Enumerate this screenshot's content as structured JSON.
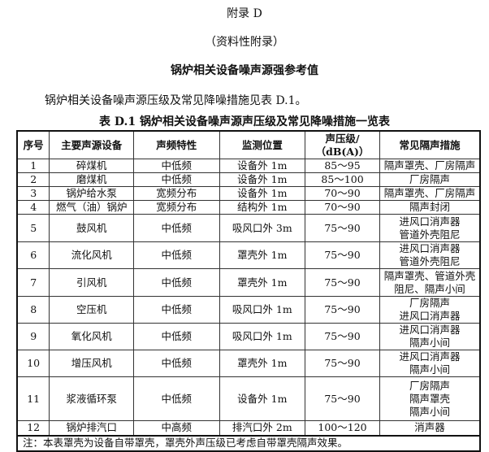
{
  "appendix": "附录 D",
  "nature": "（资料性附录）",
  "title": "锅炉相关设备噪声源强参考值",
  "paragraph": "锅炉相关设备噪声源压级及常见降噪措施见表 D.1。",
  "caption": "表 D.1    锅炉相关设备噪声源声压级及常见降噪措施一览表",
  "headers": [
    "序号",
    "主要声源设备",
    "声频特性",
    "监测位置",
    "声压级/\n（dB(A)）",
    "常见隔声措施"
  ],
  "rows": [
    [
      "1",
      "碎煤机",
      "中低频",
      "设备外 1m",
      "85～95",
      "隔声罩壳、厂房隔声"
    ],
    [
      "2",
      "磨煤机",
      "中低频",
      "设备外 1m",
      "85～100",
      "厂房隔声"
    ],
    [
      "3",
      "锅炉给水泵",
      "宽频分布",
      "设备外 1m",
      "70～90",
      "隔声罩壳、厂房隔声"
    ],
    [
      "4",
      "燃气（油）锅炉",
      "宽频分布",
      "结构外 1m",
      "70～90",
      "隔声封闭"
    ],
    [
      "5",
      "鼓风机",
      "中低频",
      "吸风口外 3m",
      "75～90",
      "进风口消声器\n管道外壳阻尼"
    ],
    [
      "6",
      "流化风机",
      "中低频",
      "罩壳外 1m",
      "75～90",
      "进风口消声器\n管道外壳阻尼"
    ],
    [
      "7",
      "引风机",
      "中低频",
      "罩壳外 1m",
      "75～90",
      "隔声罩壳、管道外壳\n阻尼、隔声小间"
    ],
    [
      "8",
      "空压机",
      "中低频",
      "吸风口外 1m",
      "75～90",
      "厂房隔声\n进风口消声器"
    ],
    [
      "9",
      "氧化风机",
      "中低频",
      "吸风口外 1m",
      "75～90",
      "进风口消声器\n隔声小间"
    ],
    [
      "10",
      "增压风机",
      "中低频",
      "罩壳外 1m",
      "75～90",
      "进风口消声器\n隔声小间"
    ],
    [
      "11",
      "浆液循环泵",
      "中低频",
      "设备外 1m",
      "75～90",
      "厂房隔声\n隔声罩壳\n隔声小间"
    ],
    [
      "12",
      "锅炉排汽口",
      "中高频",
      "排汽口外 2m",
      "100～120",
      "消声器"
    ]
  ],
  "note": "注：本表罩壳为设备自带罩壳，罩壳外声压级已考虑自带罩壳隔声效果。"
}
